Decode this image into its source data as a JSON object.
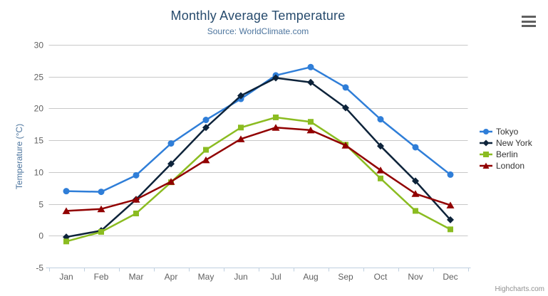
{
  "chart_data": {
    "type": "line",
    "title": "Monthly Average Temperature",
    "subtitle": "Source: WorldClimate.com",
    "categories": [
      "Jan",
      "Feb",
      "Mar",
      "Apr",
      "May",
      "Jun",
      "Jul",
      "Aug",
      "Sep",
      "Oct",
      "Nov",
      "Dec"
    ],
    "xlabel": "",
    "ylabel": "Temperature (°C)",
    "ylim": [
      -5,
      30
    ],
    "ytick_interval": 5,
    "yticks": [
      -5,
      0,
      5,
      10,
      15,
      20,
      25,
      30
    ],
    "grid": true,
    "legend_position": "right",
    "series": [
      {
        "name": "Tokyo",
        "color": "#2f7ed8",
        "marker": "circle",
        "values": [
          7.0,
          6.9,
          9.5,
          14.5,
          18.2,
          21.5,
          25.2,
          26.5,
          23.3,
          18.3,
          13.9,
          9.6
        ]
      },
      {
        "name": "New York",
        "color": "#0d233a",
        "marker": "diamond",
        "values": [
          -0.2,
          0.8,
          5.7,
          11.3,
          17.0,
          22.0,
          24.8,
          24.1,
          20.1,
          14.1,
          8.6,
          2.5
        ]
      },
      {
        "name": "Berlin",
        "color": "#8bbc21",
        "marker": "square",
        "values": [
          -0.9,
          0.6,
          3.5,
          8.4,
          13.5,
          17.0,
          18.6,
          17.9,
          14.3,
          9.0,
          3.9,
          1.0
        ]
      },
      {
        "name": "London",
        "color": "#910000",
        "marker": "triangle",
        "values": [
          3.9,
          4.2,
          5.7,
          8.5,
          11.9,
          15.2,
          17.0,
          16.6,
          14.2,
          10.3,
          6.6,
          4.8
        ]
      }
    ]
  },
  "credits": {
    "label": "Highcharts.com"
  },
  "icons": {
    "export_menu": "hamburger-icon"
  },
  "style_colors": {
    "grid_line": "#c8c8c8",
    "axis_line": "#c0d0e0",
    "axis_label": "#606060",
    "title": "#274b6d",
    "subtitle": "#4d759e",
    "legend_text": "#333333",
    "credits_text": "#909090"
  }
}
